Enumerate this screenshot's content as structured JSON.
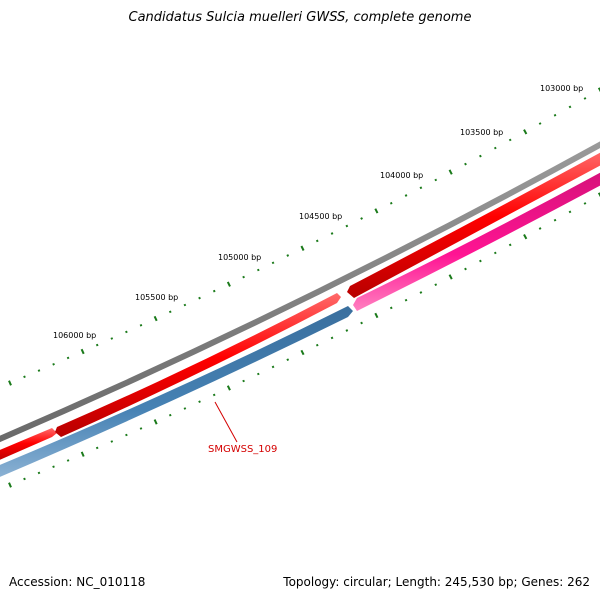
{
  "title": "Candidatus Sulcia muelleri GWSS, complete genome",
  "footer": {
    "accession": "Accession: NC_010118",
    "summary": "Topology: circular; Length: 245,530 bp; Genes: 262"
  },
  "ruler": {
    "labels": [
      "103000 bp",
      "103500 bp",
      "104000 bp",
      "104500 bp",
      "105000 bp",
      "105500 bp",
      "106000 bp"
    ],
    "tick_color": "#1a7a1a"
  },
  "tracks": {
    "backbone_color": "#808080",
    "forward_gene_color": "#ff0000",
    "reverse_gene_colors": [
      "#4682b4",
      "#ff1493"
    ]
  },
  "callout": {
    "label": "SMGWSS_109",
    "color": "#d40000"
  }
}
